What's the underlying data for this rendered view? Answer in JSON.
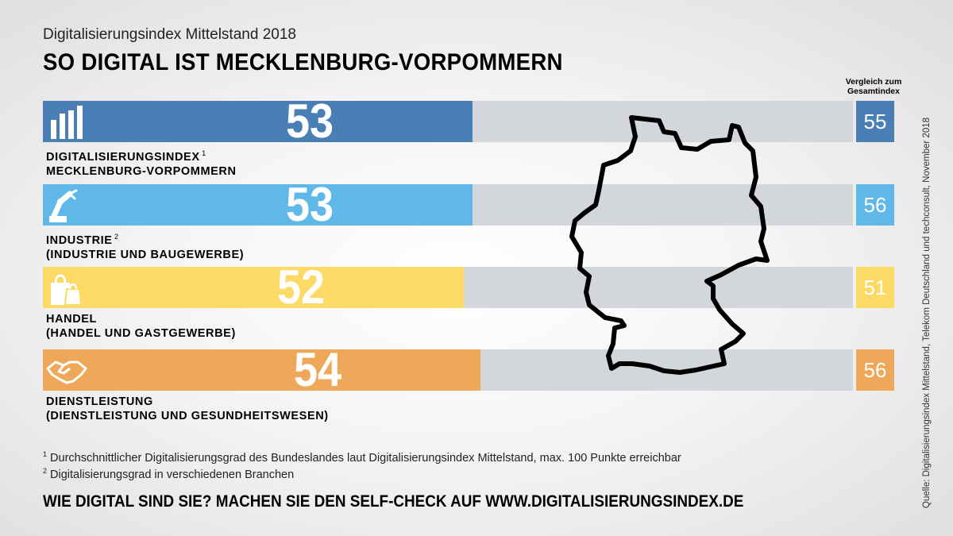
{
  "header": {
    "subtitle": "Digitalisierungsindex Mittelstand 2018",
    "title": "SO DIGITAL IST MECKLENBURG-VORPOMMERN",
    "comparison_line1": "Vergleich zum",
    "comparison_line2": "Gesamtindex"
  },
  "chart_data": {
    "type": "bar",
    "orientation": "horizontal",
    "title": "SO DIGITAL IST MECKLENBURG-VORPOMMERN",
    "xlim": [
      0,
      100
    ],
    "rows": [
      {
        "line1": "DIGITALISIERUNGSINDEX",
        "sup": "1",
        "line2": "MECKLENBURG-VORPOMMERN",
        "value": 53,
        "comparison": 55,
        "color": "#4a7fb5",
        "icon": "bar-chart-icon"
      },
      {
        "line1": "INDUSTRIE",
        "sup": "2",
        "line2": "(INDUSTRIE UND BAUGEWERBE)",
        "value": 53,
        "comparison": 56,
        "color": "#60b8e8",
        "icon": "robot-arm-icon"
      },
      {
        "line1": "HANDEL",
        "sup": "",
        "line2": "(HANDEL UND GASTGEWERBE)",
        "value": 52,
        "comparison": 51,
        "color": "#fdd966",
        "icon": "shopping-bags-icon"
      },
      {
        "line1": "DIENSTLEISTUNG",
        "sup": "",
        "line2": "(DIENSTLEISTUNG UND GESUNDHEITSWESEN)",
        "value": 54,
        "comparison": 56,
        "color": "#efa85a",
        "icon": "handshake-icon"
      }
    ]
  },
  "map": {
    "icon": "germany-outline-icon"
  },
  "footnotes": [
    {
      "num": "1",
      "text": "Durchschnittlicher Digitalisierungsgrad des Bundeslandes laut Digitalisierungsindex Mittelstand, max. 100 Punkte erreichbar"
    },
    {
      "num": "2",
      "text": "Digitalisierungsgrad in verschiedenen Branchen"
    }
  ],
  "cta": "WIE DIGITAL SIND SIE? MACHEN SIE DEN SELF-CHECK AUF WWW.DIGITALISIERUNGSINDEX.DE",
  "source": "Quelle: Digitalisierungsindex Mittelstand, Telekom Deutschland und techconsult, November 2018",
  "colors": {
    "track": "#d3d7db"
  }
}
